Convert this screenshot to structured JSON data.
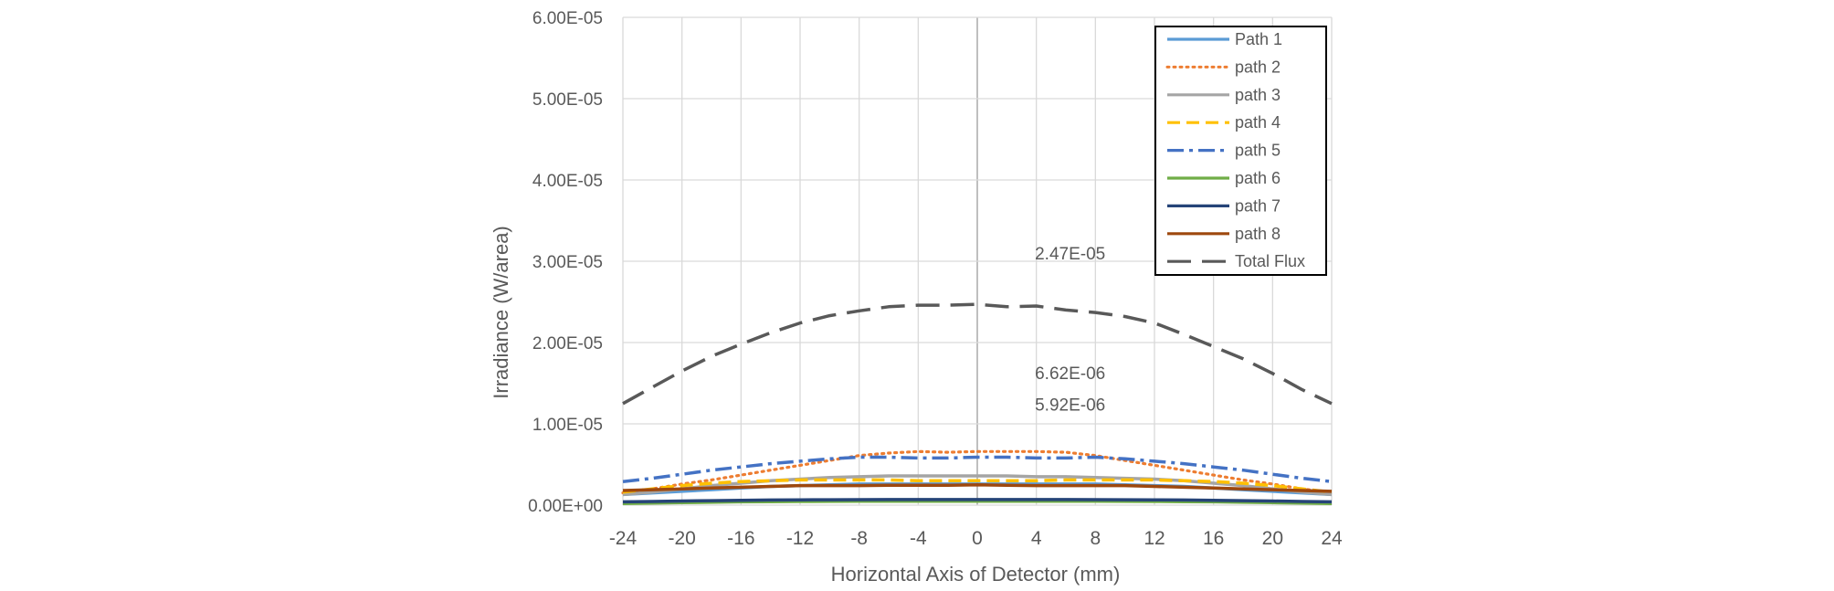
{
  "chart_data": {
    "type": "line",
    "title": "",
    "xlabel": "Horizontal Axis of Detector (mm)",
    "ylabel": "Irradiance (W/area)",
    "xlim": [
      -24,
      24
    ],
    "ylim": [
      0,
      6e-05
    ],
    "x_ticks": [
      "-24",
      "-20",
      "-16",
      "-12",
      "-8",
      "-4",
      "0",
      "4",
      "8",
      "12",
      "16",
      "20",
      "24"
    ],
    "y_ticks": [
      "0.00E+00",
      "1.00E-05",
      "2.00E-05",
      "3.00E-05",
      "4.00E-05",
      "5.00E-05",
      "6.00E-05"
    ],
    "grid": true,
    "legend_position": "top-right",
    "x": [
      -24,
      -22,
      -20,
      -18,
      -16,
      -14,
      -12,
      -10,
      -8,
      -6,
      -4,
      -2,
      0,
      2,
      4,
      6,
      8,
      10,
      12,
      14,
      16,
      18,
      20,
      22,
      24
    ],
    "series": [
      {
        "name": "Path 1",
        "color": "#5B9BD5",
        "dash": "solid",
        "values": [
          1.3e-06,
          1.5e-06,
          1.7e-06,
          1.9e-06,
          2.1e-06,
          2.3e-06,
          2.4e-06,
          2.5e-06,
          2.6e-06,
          2.6e-06,
          2.6e-06,
          2.6e-06,
          2.6e-06,
          2.6e-06,
          2.6e-06,
          2.6e-06,
          2.6e-06,
          2.5e-06,
          2.4e-06,
          2.3e-06,
          2.1e-06,
          1.9e-06,
          1.7e-06,
          1.5e-06,
          1.3e-06
        ]
      },
      {
        "name": "path 2",
        "color": "#ED7D31",
        "dash": "dotted",
        "values": [
          1.5e-06,
          2e-06,
          2.6e-06,
          3.1e-06,
          3.7e-06,
          4.3e-06,
          4.9e-06,
          5.5e-06,
          6.1e-06,
          6.4e-06,
          6.6e-06,
          6.5e-06,
          6.6e-06,
          6.6e-06,
          6.6e-06,
          6.5e-06,
          6.1e-06,
          5.5e-06,
          4.9e-06,
          4.3e-06,
          3.7e-06,
          3.1e-06,
          2.6e-06,
          2e-06,
          1.5e-06
        ]
      },
      {
        "name": "path 3",
        "color": "#A5A5A5",
        "dash": "solid",
        "values": [
          1.3e-06,
          1.6e-06,
          2e-06,
          2.4e-06,
          2.7e-06,
          3e-06,
          3.2e-06,
          3.4e-06,
          3.5e-06,
          3.6e-06,
          3.6e-06,
          3.6e-06,
          3.6e-06,
          3.6e-06,
          3.5e-06,
          3.5e-06,
          3.4e-06,
          3.3e-06,
          3.2e-06,
          3e-06,
          2.7e-06,
          2.4e-06,
          2e-06,
          1.6e-06,
          1.3e-06
        ]
      },
      {
        "name": "path 4",
        "color": "#FFC000",
        "dash": "dashed",
        "values": [
          1.6e-06,
          2e-06,
          2.4e-06,
          2.7e-06,
          2.9e-06,
          3e-06,
          3.1e-06,
          3.1e-06,
          3.1e-06,
          3.1e-06,
          3e-06,
          3e-06,
          3e-06,
          3e-06,
          3e-06,
          3.1e-06,
          3.1e-06,
          3.1e-06,
          3.1e-06,
          3e-06,
          2.9e-06,
          2.7e-06,
          2.4e-06,
          2e-06,
          1.6e-06
        ]
      },
      {
        "name": "path 5",
        "color": "#4472C4",
        "dash": "dashdot",
        "values": [
          2.9e-06,
          3.3e-06,
          3.8e-06,
          4.3e-06,
          4.7e-06,
          5.1e-06,
          5.4e-06,
          5.7e-06,
          5.9e-06,
          5.9e-06,
          5.8e-06,
          5.8e-06,
          5.9e-06,
          5.9e-06,
          5.8e-06,
          5.8e-06,
          5.9e-06,
          5.7e-06,
          5.4e-06,
          5.1e-06,
          4.7e-06,
          4.3e-06,
          3.8e-06,
          3.3e-06,
          2.9e-06
        ]
      },
      {
        "name": "path 6",
        "color": "#70AD47",
        "dash": "solid",
        "values": [
          2e-07,
          2.5e-07,
          3e-07,
          3.5e-07,
          4e-07,
          4.3e-07,
          4.5e-07,
          4.6e-07,
          4.7e-07,
          4.8e-07,
          4.8e-07,
          4.8e-07,
          4.8e-07,
          4.8e-07,
          4.8e-07,
          4.8e-07,
          4.7e-07,
          4.6e-07,
          4.5e-07,
          4.3e-07,
          4e-07,
          3.5e-07,
          3e-07,
          2.5e-07,
          2e-07
        ]
      },
      {
        "name": "path 7",
        "color": "#264478",
        "dash": "solid",
        "values": [
          4e-07,
          4.5e-07,
          5e-07,
          5.5e-07,
          6e-07,
          6.3e-07,
          6.5e-07,
          6.6e-07,
          6.7e-07,
          6.8e-07,
          6.8e-07,
          6.8e-07,
          6.8e-07,
          6.8e-07,
          6.8e-07,
          6.8e-07,
          6.7e-07,
          6.6e-07,
          6.5e-07,
          6.3e-07,
          6e-07,
          5.5e-07,
          5e-07,
          4.5e-07,
          4e-07
        ]
      },
      {
        "name": "path 8",
        "color": "#9E480E",
        "dash": "solid",
        "values": [
          1.8e-06,
          1.9e-06,
          2e-06,
          2.1e-06,
          2.2e-06,
          2.3e-06,
          2.4e-06,
          2.4e-06,
          2.4e-06,
          2.45e-06,
          2.45e-06,
          2.45e-06,
          2.5e-06,
          2.45e-06,
          2.4e-06,
          2.4e-06,
          2.4e-06,
          2.4e-06,
          2.3e-06,
          2.2e-06,
          2.1e-06,
          2e-06,
          1.9e-06,
          1.8e-06,
          1.7e-06
        ]
      },
      {
        "name": "Total Flux",
        "color": "#595959",
        "dash": "longdash",
        "values": [
          1.25e-05,
          1.45e-05,
          1.65e-05,
          1.83e-05,
          1.98e-05,
          2.12e-05,
          2.24e-05,
          2.33e-05,
          2.39e-05,
          2.44e-05,
          2.46e-05,
          2.46e-05,
          2.47e-05,
          2.44e-05,
          2.45e-05,
          2.4e-05,
          2.37e-05,
          2.32e-05,
          2.24e-05,
          2.1e-05,
          1.95e-05,
          1.8e-05,
          1.62e-05,
          1.42e-05,
          1.25e-05
        ]
      }
    ],
    "annotations": [
      {
        "text": "2.47E-05",
        "x": 4,
        "y": 3.1e-05
      },
      {
        "text": "6.62E-06",
        "x": 4,
        "y": 1.63e-05
      },
      {
        "text": "5.92E-06",
        "x": 4,
        "y": 1.24e-05
      }
    ]
  }
}
